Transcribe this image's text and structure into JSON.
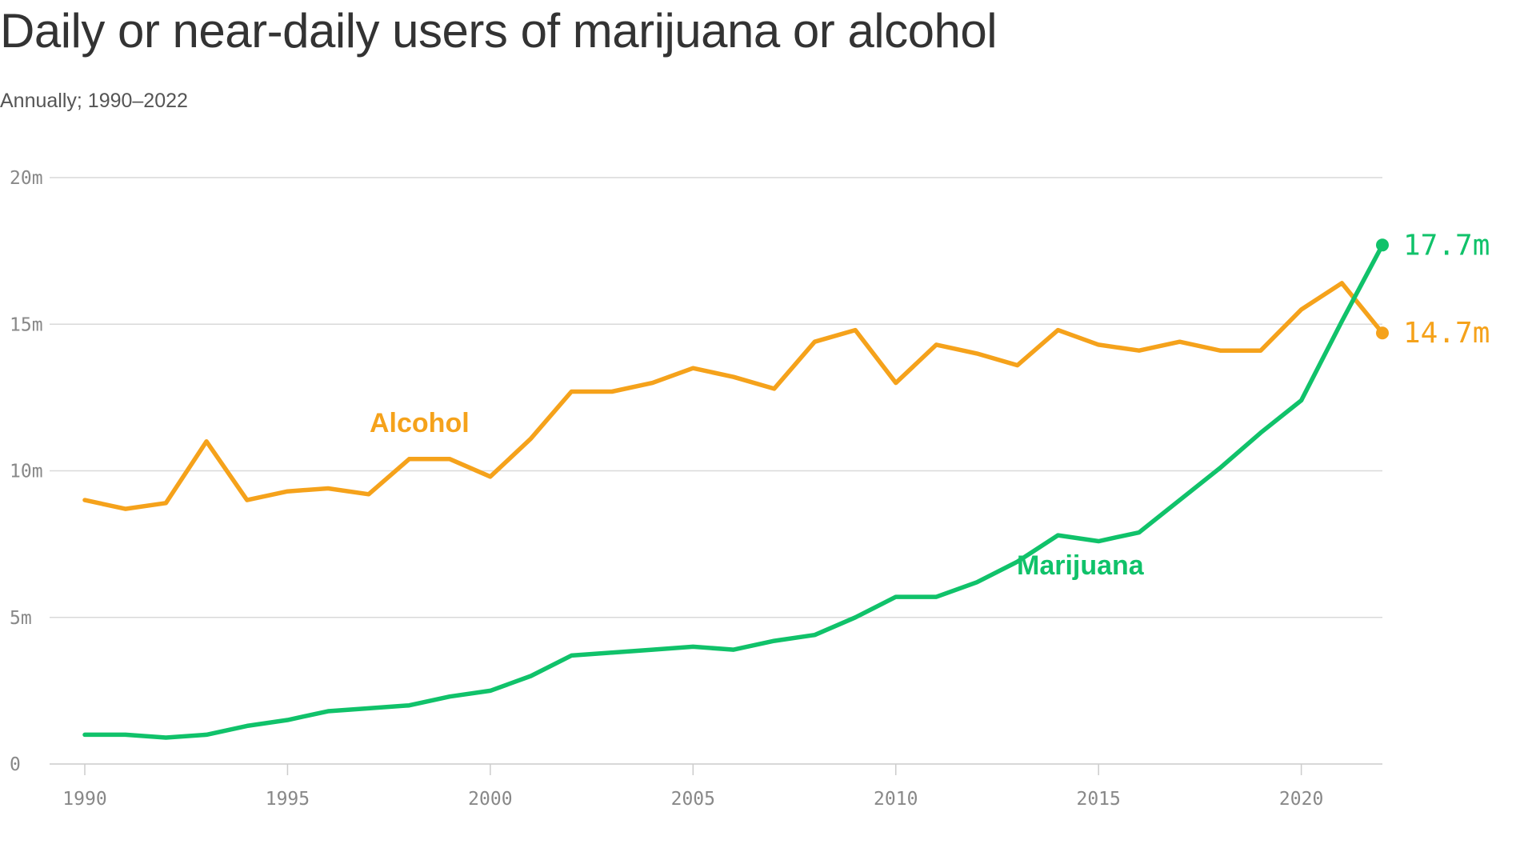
{
  "title": "Daily or near-daily users of marijuana or alcohol",
  "subtitle": "Annually; 1990–2022",
  "colors": {
    "alcohol": "#f5a21b",
    "marijuana": "#10c26a"
  },
  "chart_data": {
    "type": "line",
    "title": "Daily or near-daily users of marijuana or alcohol",
    "subtitle": "Annually; 1990–2022",
    "xlabel": "",
    "ylabel": "",
    "x": [
      1990,
      1991,
      1992,
      1993,
      1994,
      1995,
      1996,
      1997,
      1998,
      1999,
      2000,
      2001,
      2002,
      2003,
      2004,
      2005,
      2006,
      2007,
      2008,
      2009,
      2010,
      2011,
      2012,
      2013,
      2014,
      2015,
      2016,
      2017,
      2018,
      2019,
      2020,
      2021,
      2022
    ],
    "xlim": [
      1990,
      2022
    ],
    "ylim": [
      0,
      20
    ],
    "x_ticks": [
      1990,
      1995,
      2000,
      2005,
      2010,
      2015,
      2020
    ],
    "x_tick_labels": [
      "1990",
      "1995",
      "2000",
      "2005",
      "2010",
      "2015",
      "2020"
    ],
    "y_ticks": [
      0,
      5,
      10,
      15,
      20
    ],
    "y_tick_labels": [
      "0",
      "5m",
      "10m",
      "15m",
      "20m"
    ],
    "grid": true,
    "legend": "inline labels",
    "series": [
      {
        "name": "Alcohol",
        "color": "#f5a21b",
        "values": [
          9.0,
          8.7,
          8.9,
          11.0,
          9.0,
          9.3,
          9.4,
          9.2,
          10.4,
          10.4,
          9.8,
          11.1,
          12.7,
          12.7,
          13.0,
          13.5,
          13.2,
          12.8,
          14.4,
          14.8,
          13.0,
          14.3,
          14.0,
          13.6,
          14.8,
          14.3,
          14.1,
          14.4,
          14.1,
          14.1,
          15.5,
          16.4,
          14.7
        ],
        "end_label": "14.7m"
      },
      {
        "name": "Marijuana",
        "color": "#10c26a",
        "values": [
          1.0,
          1.0,
          0.9,
          1.0,
          1.3,
          1.5,
          1.8,
          1.9,
          2.0,
          2.3,
          2.5,
          3.0,
          3.7,
          3.8,
          3.9,
          4.0,
          3.9,
          4.2,
          4.4,
          5.0,
          5.7,
          5.7,
          6.2,
          6.9,
          7.8,
          7.6,
          7.9,
          9.0,
          10.1,
          11.3,
          12.4,
          15.1,
          17.7
        ],
        "end_label": "17.7m"
      }
    ]
  }
}
